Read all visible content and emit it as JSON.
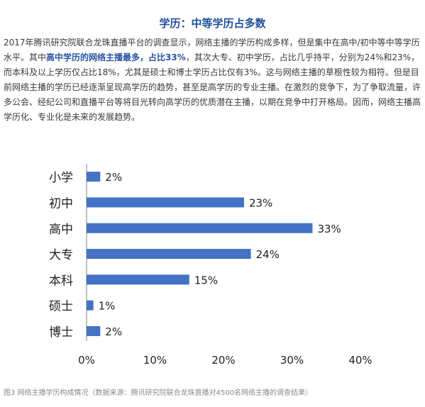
{
  "heading": "学历：中等学历占多数",
  "paragraph": {
    "part1": "2017年腾讯研究院联合龙珠直播平台的调查显示，网络主播的学历构成多样，但是集中在高中/初中等中等学历水平。其中",
    "highlight": "高中学历的网络主播最多，占比33%",
    "part2": "，其次大专、初中学历，占比几乎持平，分别为24%和23%，而本科及以上学历仅占比18%，尤其是硕士和博士学历占比仅有3%。这与网络主播的草根性较为相符。但是目前网络主播的学历已经逐渐呈现高学历的趋势，甚至是高学历的专业主播。在激烈的竞争下，为了争取流量，许多公会、经纪公司和直播平台等将目光转向高学历的优质潜在主播，以期在竞争中打开格局。因而，网络主播高学历化、专业化是未来的发展趋势。"
  },
  "chart_data": {
    "type": "bar",
    "orientation": "horizontal",
    "categories": [
      "小学",
      "初中",
      "高中",
      "大专",
      "本科",
      "硕士",
      "博士"
    ],
    "values": [
      2,
      23,
      33,
      24,
      15,
      1,
      2
    ],
    "value_labels": [
      "2%",
      "23%",
      "33%",
      "24%",
      "15%",
      "1%",
      "2%"
    ],
    "xlim": [
      0,
      40
    ],
    "x_ticks": [
      "0%",
      "10%",
      "20%",
      "30%",
      "40%"
    ],
    "title": "",
    "xlabel": "",
    "ylabel": "",
    "grid": false,
    "bar_color": "#4472c4"
  },
  "caption": "图3 网络主播学历构成情况（数据来源：腾讯研究院联合龙珠直播对4500名网络主播的调查结果）"
}
